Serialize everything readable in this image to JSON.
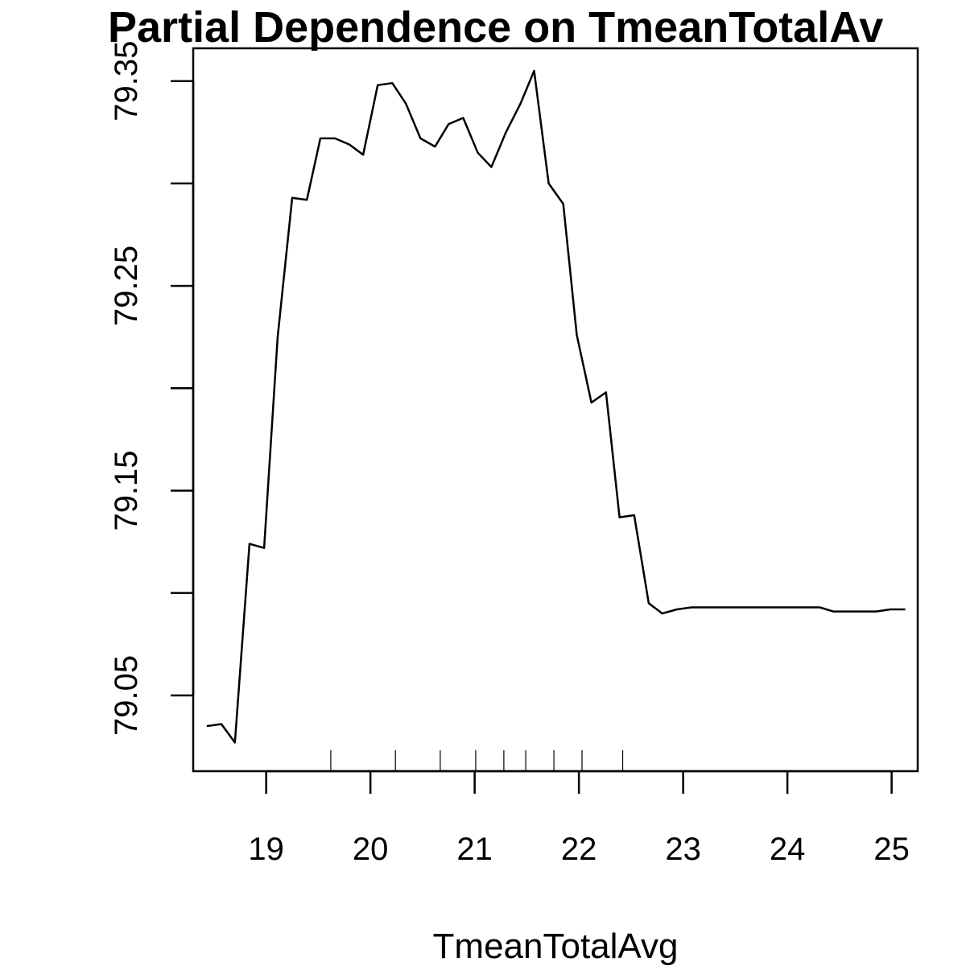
{
  "chart_data": {
    "type": "line",
    "title": "Partial Dependence on TmeanTotalAv",
    "xlabel": "TmeanTotalAvg",
    "ylabel": "",
    "xlim": [
      18.3,
      25.25
    ],
    "ylim": [
      79.013,
      79.366
    ],
    "x_ticks": [
      19,
      20,
      21,
      22,
      23,
      24,
      25
    ],
    "x_tick_labels": [
      "19",
      "20",
      "21",
      "22",
      "23",
      "24",
      "25"
    ],
    "y_ticks": [
      79.05,
      79.1,
      79.15,
      79.2,
      79.25,
      79.3,
      79.35
    ],
    "y_tick_labels": [
      "79.05",
      "",
      "79.15",
      "",
      "79.25",
      "",
      "79.35"
    ],
    "grid": false,
    "series": [
      {
        "x": [
          18.43,
          18.57,
          18.7,
          18.84,
          18.98,
          19.11,
          19.25,
          19.39,
          19.52,
          19.66,
          19.8,
          19.93,
          20.07,
          20.21,
          20.34,
          20.48,
          20.62,
          20.75,
          20.89,
          21.03,
          21.16,
          21.3,
          21.44,
          21.57,
          21.71,
          21.85,
          21.98,
          22.12,
          22.26,
          22.39,
          22.53,
          22.67,
          22.8,
          22.94,
          23.08,
          23.21,
          23.35,
          23.49,
          23.62,
          23.76,
          23.9,
          24.03,
          24.17,
          24.31,
          24.44,
          24.58,
          24.72,
          24.85,
          24.99,
          25.13
        ],
        "values": [
          79.035,
          79.036,
          79.027,
          79.124,
          79.122,
          79.225,
          79.293,
          79.292,
          79.322,
          79.322,
          79.319,
          79.314,
          79.348,
          79.349,
          79.339,
          79.322,
          79.318,
          79.329,
          79.332,
          79.315,
          79.308,
          79.325,
          79.339,
          79.355,
          79.3,
          79.29,
          79.226,
          79.193,
          79.198,
          79.137,
          79.138,
          79.095,
          79.09,
          79.092,
          79.093,
          79.093,
          79.093,
          79.093,
          79.093,
          79.093,
          79.093,
          79.093,
          79.093,
          79.093,
          79.091,
          79.091,
          79.091,
          79.091,
          79.092,
          79.092
        ]
      }
    ],
    "rug": [
      19.62,
      20.24,
      20.67,
      21.01,
      21.28,
      21.49,
      21.76,
      22.03,
      22.42
    ]
  }
}
